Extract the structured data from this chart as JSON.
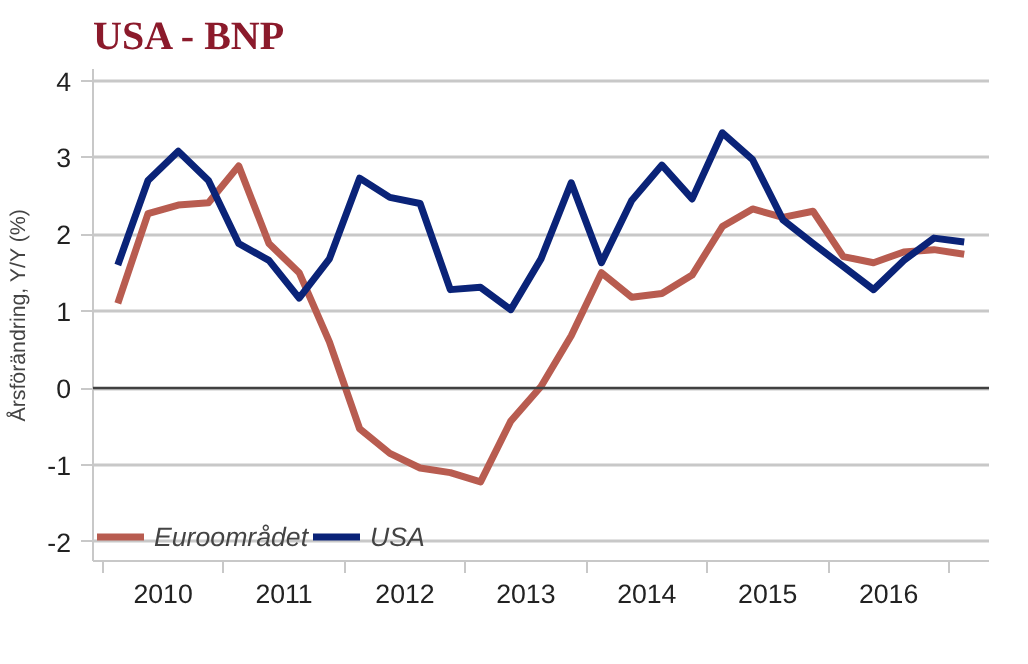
{
  "chart_data": {
    "type": "line",
    "title": "USA - BNP",
    "ylabel": "Årsförändring, Y/Y (%)",
    "x": [
      2010.125,
      2010.375,
      2010.625,
      2010.875,
      2011.125,
      2011.375,
      2011.625,
      2011.875,
      2012.125,
      2012.375,
      2012.625,
      2012.875,
      2013.125,
      2013.375,
      2013.625,
      2013.875,
      2014.125,
      2014.375,
      2014.625,
      2014.875,
      2015.125,
      2015.375,
      2015.625,
      2015.875,
      2016.125,
      2016.375,
      2016.625,
      2016.875,
      2017.125
    ],
    "series": [
      {
        "name": "Euroområdet",
        "color": "#b85c50",
        "values": [
          1.1,
          2.27,
          2.38,
          2.41,
          2.89,
          1.88,
          1.5,
          0.6,
          -0.53,
          -0.85,
          -1.04,
          -1.1,
          -1.22,
          -0.43,
          0.02,
          0.68,
          1.5,
          1.18,
          1.23,
          1.47,
          2.1,
          2.33,
          2.22,
          2.3,
          1.71,
          1.63,
          1.77,
          1.8,
          1.74
        ]
      },
      {
        "name": "USA",
        "color": "#0a2378",
        "values": [
          1.6,
          2.7,
          3.08,
          2.7,
          1.88,
          1.66,
          1.17,
          1.68,
          2.73,
          2.48,
          2.4,
          1.28,
          1.31,
          1.02,
          1.68,
          2.67,
          1.63,
          2.44,
          2.9,
          2.46,
          3.32,
          2.97,
          2.19,
          1.88,
          1.58,
          1.28,
          1.66,
          1.95,
          1.9
        ]
      }
    ],
    "xlim": [
      2009.92,
      2017.33
    ],
    "xticks": [
      {
        "value": 2010,
        "label": null
      },
      {
        "value": 2010.5,
        "label": "2010"
      },
      {
        "value": 2011,
        "label": null
      },
      {
        "value": 2011.5,
        "label": "2011"
      },
      {
        "value": 2012,
        "label": null
      },
      {
        "value": 2012.5,
        "label": "2012"
      },
      {
        "value": 2013,
        "label": null
      },
      {
        "value": 2013.5,
        "label": "2013"
      },
      {
        "value": 2014,
        "label": null
      },
      {
        "value": 2014.5,
        "label": "2014"
      },
      {
        "value": 2015,
        "label": null
      },
      {
        "value": 2015.5,
        "label": "2015"
      },
      {
        "value": 2016,
        "label": null
      },
      {
        "value": 2016.5,
        "label": "2016"
      },
      {
        "value": 2017,
        "label": null
      }
    ],
    "ylim": [
      -2.25,
      4.15
    ],
    "yticks": [
      -2,
      -1,
      0,
      1,
      2,
      3,
      4
    ],
    "ref_lines": [
      {
        "axis": "y",
        "value": 0,
        "label": null,
        "color": "#404040"
      }
    ],
    "grid": "y",
    "legend": "bottom left",
    "line_style": "solid",
    "marker": "none"
  }
}
